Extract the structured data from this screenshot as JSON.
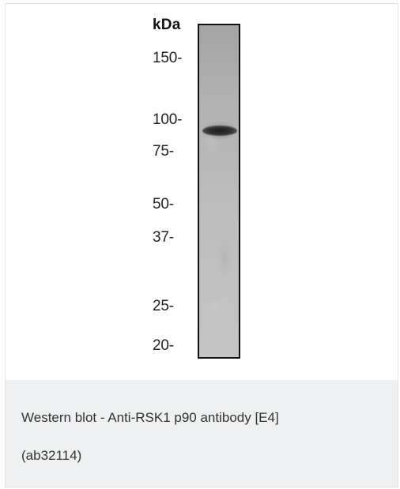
{
  "blot": {
    "unit_label": "kDa",
    "markers": [
      {
        "label": "150-"
      },
      {
        "label": "100-"
      },
      {
        "label": "75-"
      },
      {
        "label": "50-"
      },
      {
        "label": "37-"
      },
      {
        "label": "25-"
      },
      {
        "label": "20-"
      }
    ]
  },
  "caption": {
    "line1": "Western blot - Anti-RSK1 p90 antibody [E4]",
    "line2": "(ab32114)"
  }
}
